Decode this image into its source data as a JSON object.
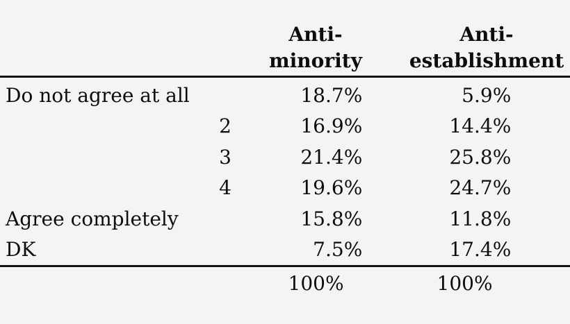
{
  "table": {
    "columns": [
      {
        "label": "Anti-minority"
      },
      {
        "label": "Anti-establishment"
      }
    ],
    "rows": [
      {
        "label": "Do not agree at all",
        "scale": "",
        "anti_minority": "18.7%",
        "anti_establishment": "5.9%"
      },
      {
        "label": "",
        "scale": "2",
        "anti_minority": "16.9%",
        "anti_establishment": "14.4%"
      },
      {
        "label": "",
        "scale": "3",
        "anti_minority": "21.4%",
        "anti_establishment": "25.8%"
      },
      {
        "label": "",
        "scale": "4",
        "anti_minority": "19.6%",
        "anti_establishment": "24.7%"
      },
      {
        "label": "Agree completely",
        "scale": "",
        "anti_minority": "15.8%",
        "anti_establishment": "11.8%"
      },
      {
        "label": "DK",
        "scale": "",
        "anti_minority": "7.5%",
        "anti_establishment": "17.4%"
      }
    ],
    "totals": {
      "anti_minority": "100%",
      "anti_establishment": "100%"
    }
  },
  "chart_data": {
    "type": "table",
    "categories": [
      "Do not agree at all",
      "2",
      "3",
      "4",
      "Agree completely",
      "DK"
    ],
    "series": [
      {
        "name": "Anti-minority",
        "values": [
          18.7,
          16.9,
          21.4,
          19.6,
          15.8,
          7.5
        ]
      },
      {
        "name": "Anti-establishment",
        "values": [
          5.9,
          14.4,
          25.8,
          24.7,
          11.8,
          17.4
        ]
      }
    ],
    "totals": {
      "Anti-minority": 100,
      "Anti-establishment": 100
    },
    "unit": "%",
    "legend_position": "none",
    "grid": "off"
  },
  "colors": {
    "background": "#f5f4f3",
    "text": "#0d0d0d",
    "rule": "#111111"
  }
}
